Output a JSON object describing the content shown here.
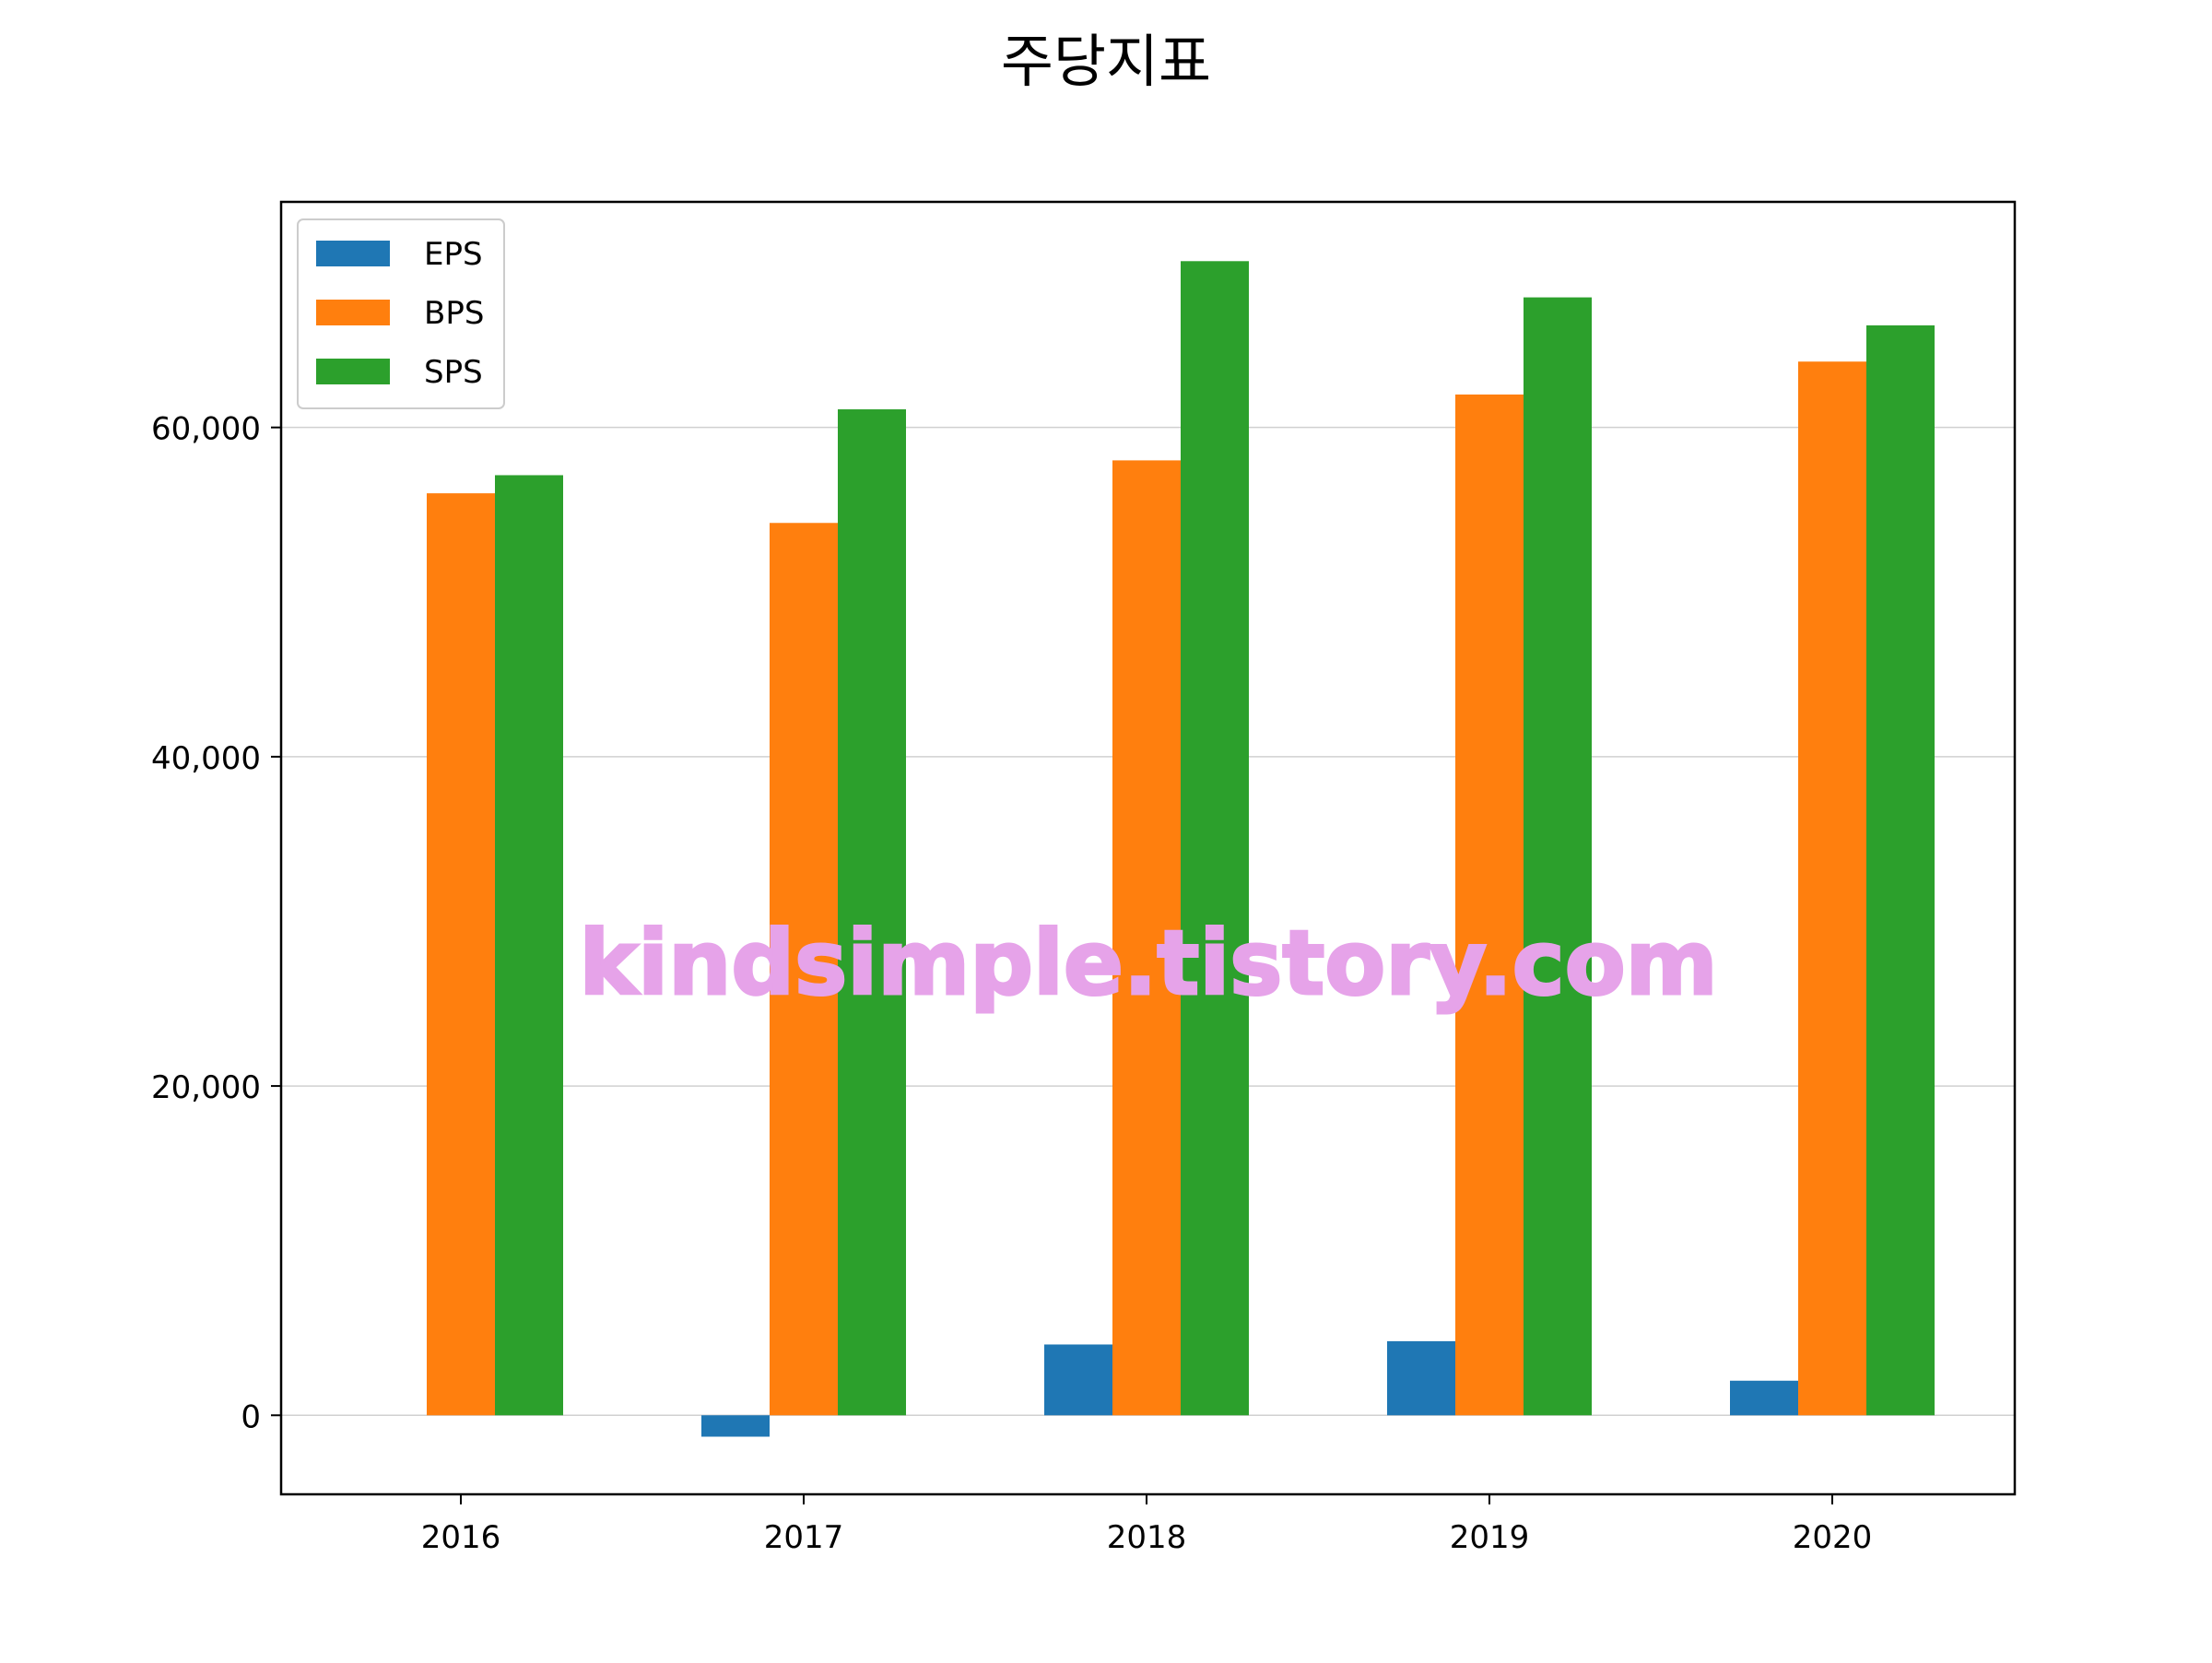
{
  "chart_data": {
    "type": "bar",
    "title": "주당지표",
    "xlabel": "",
    "ylabel": "",
    "categories": [
      "2016",
      "2017",
      "2018",
      "2019",
      "2020"
    ],
    "series": [
      {
        "name": "EPS",
        "color": "#1f77b4",
        "values": [
          0,
          -1300,
          4300,
          4500,
          2100
        ]
      },
      {
        "name": "BPS",
        "color": "#ff7f0e",
        "values": [
          56000,
          54200,
          58000,
          62000,
          64000
        ]
      },
      {
        "name": "SPS",
        "color": "#2ca02c",
        "values": [
          57100,
          61100,
          70100,
          67900,
          66200
        ]
      }
    ],
    "ylim": [
      -4800,
      73700
    ],
    "yticks": [
      0,
      20000,
      40000,
      60000
    ],
    "ytick_labels": [
      "0",
      "20,000",
      "40,000",
      "60,000"
    ],
    "grid": "y",
    "legend": {
      "position": "top-left",
      "entries": [
        "EPS",
        "BPS",
        "SPS"
      ]
    }
  },
  "watermark": {
    "text": "kindsimple.tistory.com",
    "color": "#e6a3e9"
  }
}
